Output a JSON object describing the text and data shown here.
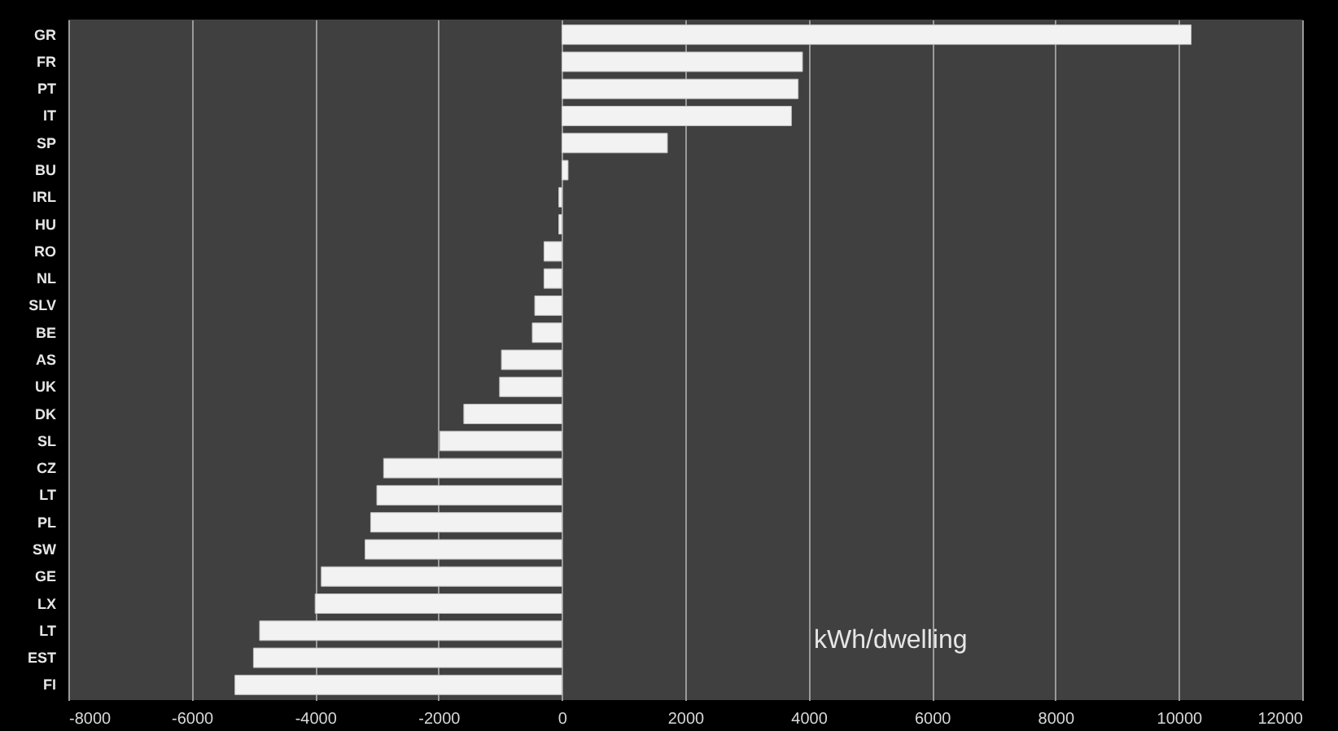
{
  "chart_data": {
    "type": "bar",
    "orientation": "horizontal",
    "categories": [
      "GR",
      "FR",
      "PT",
      "IT",
      "SP",
      "BU",
      "IRL",
      "HU",
      "RO",
      "NL",
      "SLV",
      "BE",
      "AS",
      "UK",
      "DK",
      "SL",
      "CZ",
      "LT",
      "PL",
      "SW",
      "GE",
      "LX",
      "LT",
      "EST",
      "FI"
    ],
    "values": [
      10200,
      3900,
      3830,
      3720,
      1710,
      100,
      -50,
      -50,
      -290,
      -290,
      -440,
      -480,
      -980,
      -1010,
      -1590,
      -1980,
      -2890,
      -3000,
      -3100,
      -3190,
      -3900,
      -4000,
      -4900,
      -5000,
      -5300
    ],
    "color": "#f2f2f2",
    "xlim": [
      -8000,
      12000
    ],
    "xticks": [
      -8000,
      -6000,
      -4000,
      -2000,
      0,
      2000,
      4000,
      6000,
      8000,
      10000,
      12000
    ],
    "grid": "x",
    "annotations": [
      "kWh/dwelling"
    ]
  }
}
